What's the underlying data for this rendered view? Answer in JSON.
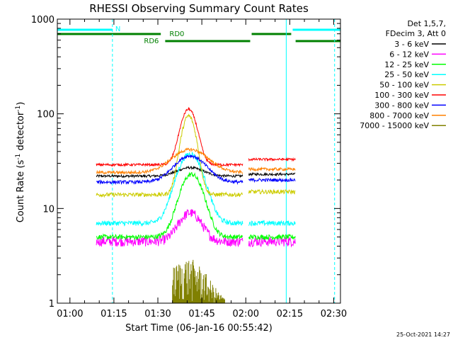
{
  "chart_data": {
    "type": "line",
    "title": "RHESSI Observing Summary Count Rates",
    "xlabel": "Start Time (06-Jan-16 00:55:42)",
    "ylabel_main": "Count Rate (s",
    "ylabel_sup1": "-1",
    "ylabel_mid": " detector",
    "ylabel_sup2": "-1",
    "ylabel_end": ")",
    "yscale": "log",
    "ylim": [
      1,
      1000
    ],
    "xlim_minutes": [
      55.7,
      152.3
    ],
    "x_ticks": [
      {
        "m": 60,
        "label": "01:00"
      },
      {
        "m": 75,
        "label": "01:15"
      },
      {
        "m": 90,
        "label": "01:30"
      },
      {
        "m": 105,
        "label": "01:45"
      },
      {
        "m": 120,
        "label": "02:00"
      },
      {
        "m": 135,
        "label": "02:15"
      },
      {
        "m": 150,
        "label": "02:30"
      }
    ],
    "y_ticks": [
      {
        "v": 1,
        "label": "1"
      },
      {
        "v": 10,
        "label": "10"
      },
      {
        "v": 100,
        "label": "100"
      },
      {
        "v": 1000,
        "label": "1000"
      }
    ],
    "legend_header": [
      "Det 1,5,7,",
      "FDecim 3, Att 0"
    ],
    "legend_placement": "right",
    "timestamp": "25-Oct-2021 14:27",
    "flag_labels": {
      "n": "N",
      "rd0": "RD0",
      "rd6": "RD6"
    },
    "flag_colors": {
      "n": "#00ffff",
      "rd": "#008000"
    },
    "flags": {
      "n": [
        [
          55.7,
          74.5
        ],
        [
          136.0,
          152.3
        ]
      ],
      "rd0": [
        [
          55.7,
          91.0
        ],
        [
          122.0,
          135.5
        ]
      ],
      "rd6": [
        [
          92.5,
          121.5
        ],
        [
          137.0,
          152.3
        ]
      ]
    },
    "vlines": [
      {
        "m": 55.7,
        "style": "solid"
      },
      {
        "m": 74.5,
        "style": "dashed"
      },
      {
        "m": 133.8,
        "style": "solid"
      },
      {
        "m": 150.3,
        "style": "dashed"
      }
    ],
    "segments": [
      {
        "start": 69,
        "end": 119,
        "level": "pre"
      },
      {
        "start": 121,
        "end": 137,
        "level": "post"
      }
    ],
    "series": [
      {
        "name": "3 - 6 keV",
        "color": "#000000",
        "pre": 22,
        "post": 23,
        "peak": 27,
        "peak_at": 101,
        "width": 6,
        "noise": 0.03
      },
      {
        "name": "6 - 12 keV",
        "color": "#ff00ff",
        "pre": 4.5,
        "post": 4.5,
        "peak": 9,
        "peak_at": 101,
        "width": 5,
        "noise": 0.12
      },
      {
        "name": "12 - 25 keV",
        "color": "#00ff00",
        "pre": 5,
        "post": 5,
        "peak": 23,
        "peak_at": 101.5,
        "width": 5,
        "noise": 0.06
      },
      {
        "name": "25 - 50 keV",
        "color": "#00ffff",
        "pre": 7,
        "post": 7,
        "peak": 38,
        "peak_at": 101,
        "width": 5.5,
        "noise": 0.06
      },
      {
        "name": "50 - 100 keV",
        "color": "#cccc00",
        "pre": 14,
        "post": 15,
        "peak": 95,
        "peak_at": 100.5,
        "width": 3.2,
        "noise": 0.05
      },
      {
        "name": "100 - 300 keV",
        "color": "#ff0000",
        "pre": 29,
        "post": 33,
        "peak": 112,
        "peak_at": 100.5,
        "width": 3.5,
        "noise": 0.03
      },
      {
        "name": "300 - 800 keV",
        "color": "#0000ff",
        "pre": 19,
        "post": 20,
        "peak": 36,
        "peak_at": 101,
        "width": 7,
        "noise": 0.04
      },
      {
        "name": "800 - 7000 keV",
        "color": "#ff8000",
        "pre": 24,
        "post": 26,
        "peak": 42,
        "peak_at": 101,
        "width": 8,
        "noise": 0.035
      },
      {
        "name": "7000 - 15000 keV",
        "color": "#808000",
        "pre": 0,
        "post": 0,
        "peak": 3,
        "peak_at": 100,
        "width": 8,
        "noise": 0,
        "sparse": true
      }
    ]
  }
}
